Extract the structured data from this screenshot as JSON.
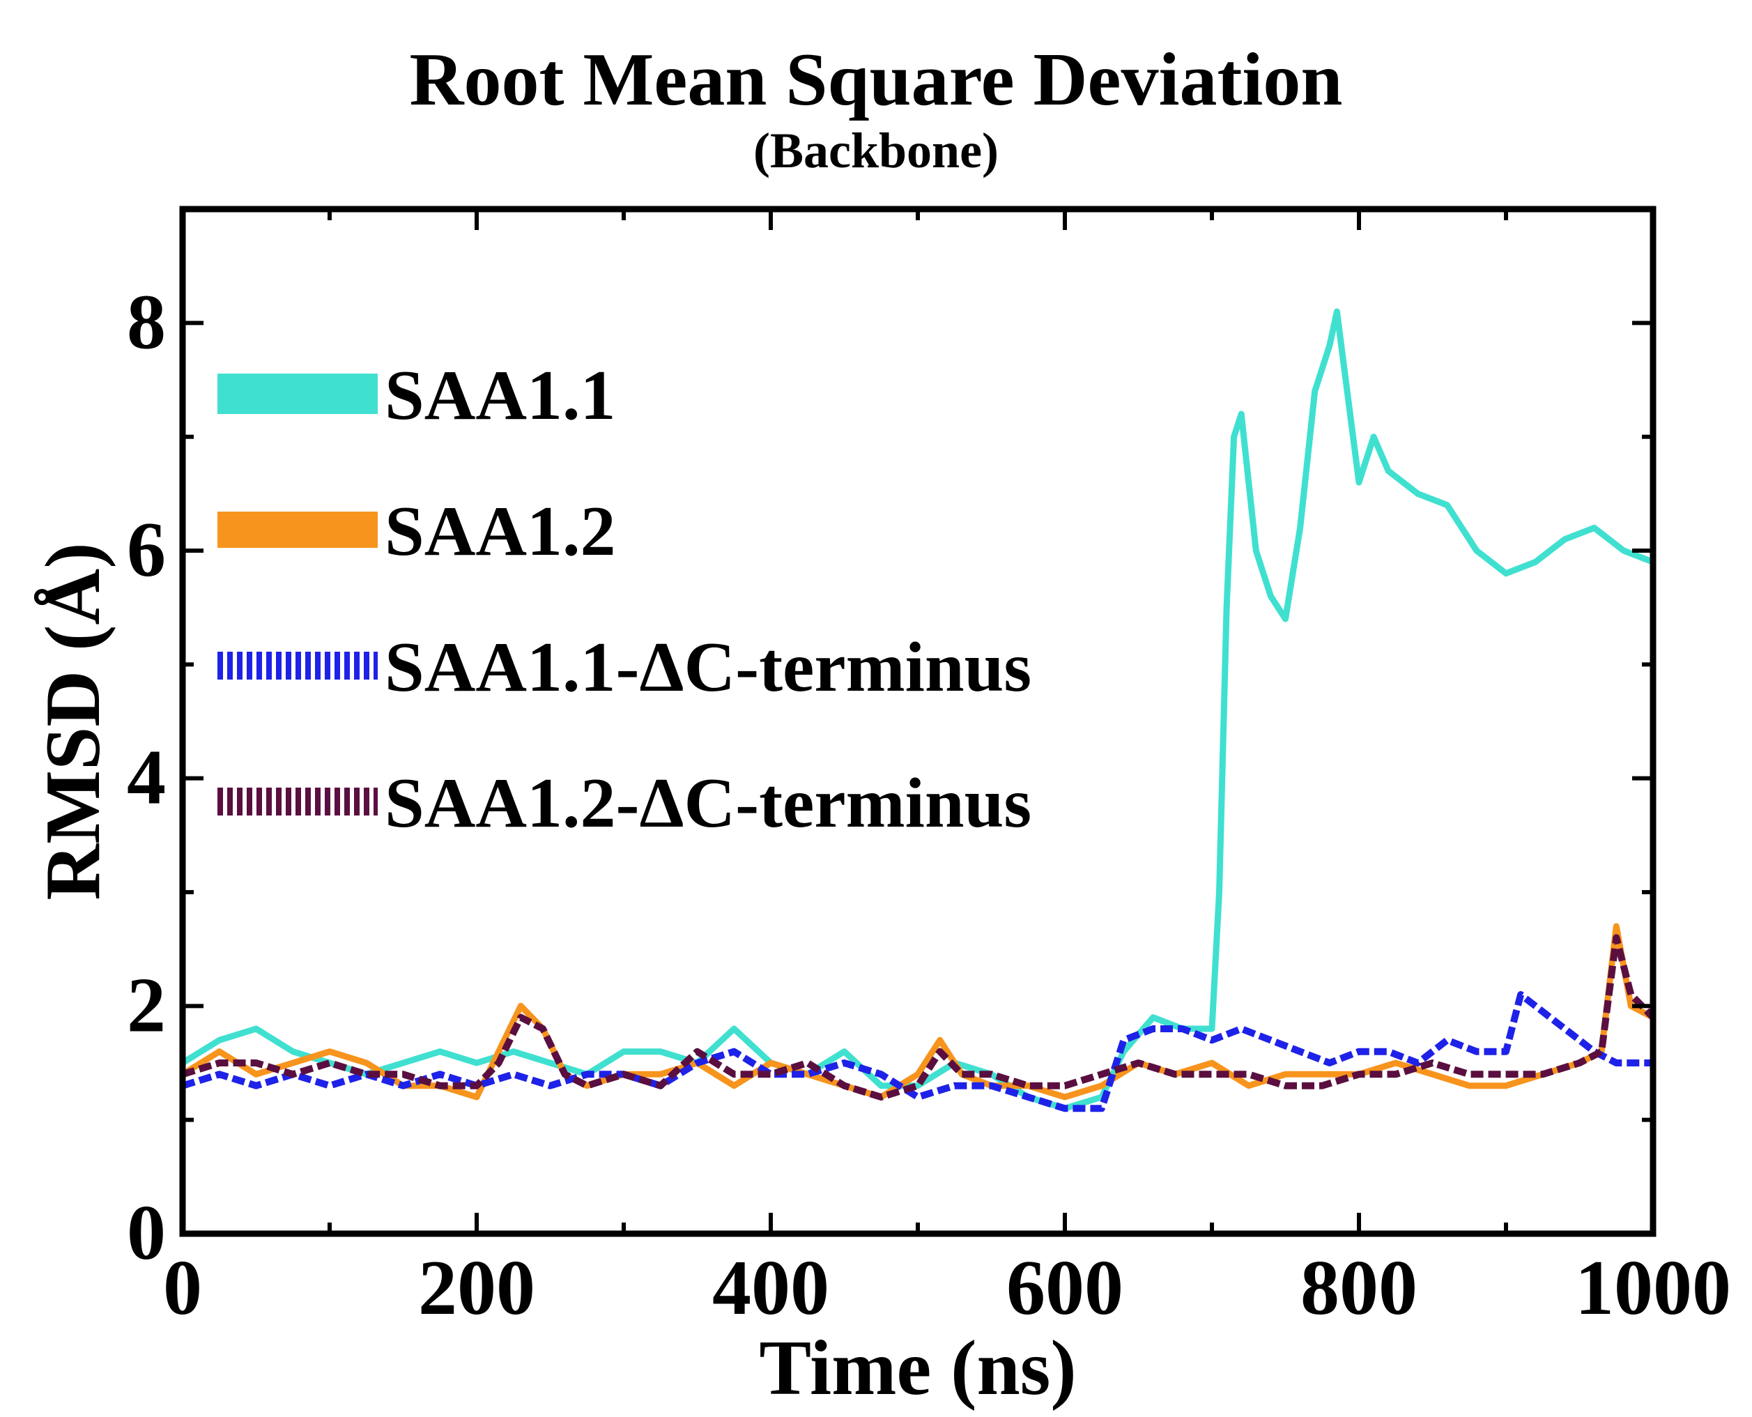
{
  "chart_data": {
    "type": "line",
    "title": "Root Mean Square Deviation",
    "subtitle": "(Backbone)",
    "xlabel": "Time (ns)",
    "ylabel": "RMSD (Å)",
    "xlim": [
      0,
      1000
    ],
    "ylim": [
      0,
      9
    ],
    "xticks": [
      0,
      200,
      400,
      600,
      800,
      1000
    ],
    "yticks": [
      0,
      2,
      4,
      6,
      8
    ],
    "legend_position": "top-left",
    "series": [
      {
        "name": "SAA1.1",
        "color": "#40E0D0",
        "style": "solid",
        "x": [
          0,
          25,
          50,
          75,
          100,
          125,
          150,
          175,
          200,
          225,
          250,
          275,
          300,
          325,
          350,
          375,
          400,
          425,
          450,
          475,
          500,
          525,
          550,
          575,
          600,
          625,
          640,
          660,
          680,
          700,
          705,
          710,
          715,
          720,
          730,
          740,
          750,
          760,
          770,
          780,
          785,
          790,
          800,
          810,
          820,
          840,
          860,
          880,
          900,
          920,
          940,
          960,
          980,
          1000
        ],
        "y": [
          1.5,
          1.7,
          1.8,
          1.6,
          1.5,
          1.4,
          1.5,
          1.6,
          1.5,
          1.6,
          1.5,
          1.4,
          1.6,
          1.6,
          1.5,
          1.8,
          1.5,
          1.4,
          1.6,
          1.3,
          1.3,
          1.5,
          1.4,
          1.2,
          1.1,
          1.2,
          1.6,
          1.9,
          1.8,
          1.8,
          3.0,
          5.5,
          7.0,
          7.2,
          6.0,
          5.6,
          5.4,
          6.2,
          7.4,
          7.8,
          8.1,
          7.6,
          6.6,
          7.0,
          6.7,
          6.5,
          6.4,
          6.0,
          5.8,
          5.9,
          6.1,
          6.2,
          6.0,
          5.9
        ]
      },
      {
        "name": "SAA1.2",
        "color": "#F7941D",
        "style": "solid",
        "x": [
          0,
          25,
          50,
          75,
          100,
          125,
          150,
          175,
          200,
          215,
          230,
          245,
          260,
          275,
          300,
          325,
          350,
          375,
          400,
          425,
          450,
          475,
          500,
          515,
          530,
          550,
          575,
          600,
          625,
          650,
          675,
          700,
          725,
          750,
          775,
          800,
          825,
          850,
          875,
          900,
          925,
          950,
          965,
          975,
          985,
          1000
        ],
        "y": [
          1.4,
          1.6,
          1.4,
          1.5,
          1.6,
          1.5,
          1.3,
          1.3,
          1.2,
          1.6,
          2.0,
          1.8,
          1.4,
          1.3,
          1.4,
          1.4,
          1.5,
          1.3,
          1.5,
          1.4,
          1.3,
          1.2,
          1.4,
          1.7,
          1.4,
          1.3,
          1.3,
          1.2,
          1.3,
          1.5,
          1.4,
          1.5,
          1.3,
          1.4,
          1.4,
          1.4,
          1.5,
          1.4,
          1.3,
          1.3,
          1.4,
          1.5,
          1.6,
          2.7,
          2.0,
          1.9
        ]
      },
      {
        "name": "SAA1.1-ΔC-terminus",
        "color": "#1E22E8",
        "style": "dashed",
        "x": [
          0,
          25,
          50,
          75,
          100,
          125,
          150,
          175,
          200,
          225,
          250,
          275,
          300,
          325,
          350,
          375,
          400,
          425,
          450,
          475,
          500,
          525,
          550,
          575,
          600,
          625,
          640,
          660,
          680,
          700,
          720,
          740,
          760,
          780,
          800,
          820,
          840,
          860,
          880,
          900,
          910,
          920,
          930,
          940,
          950,
          960,
          975,
          1000
        ],
        "y": [
          1.3,
          1.4,
          1.3,
          1.4,
          1.3,
          1.4,
          1.3,
          1.4,
          1.3,
          1.4,
          1.3,
          1.4,
          1.4,
          1.3,
          1.5,
          1.6,
          1.4,
          1.4,
          1.5,
          1.4,
          1.2,
          1.3,
          1.3,
          1.2,
          1.1,
          1.1,
          1.7,
          1.8,
          1.8,
          1.7,
          1.8,
          1.7,
          1.6,
          1.5,
          1.6,
          1.6,
          1.5,
          1.7,
          1.6,
          1.6,
          2.1,
          2.0,
          1.9,
          1.8,
          1.7,
          1.6,
          1.5,
          1.5
        ]
      },
      {
        "name": "SAA1.2-ΔC-terminus",
        "color": "#5A0F40",
        "style": "dashed",
        "x": [
          0,
          25,
          50,
          75,
          100,
          125,
          150,
          175,
          200,
          215,
          230,
          245,
          260,
          275,
          300,
          325,
          350,
          375,
          400,
          425,
          450,
          475,
          500,
          515,
          530,
          550,
          575,
          600,
          625,
          650,
          675,
          700,
          725,
          750,
          775,
          800,
          825,
          850,
          875,
          900,
          925,
          950,
          965,
          975,
          985,
          1000
        ],
        "y": [
          1.4,
          1.5,
          1.5,
          1.4,
          1.5,
          1.4,
          1.4,
          1.3,
          1.3,
          1.5,
          1.9,
          1.8,
          1.4,
          1.3,
          1.4,
          1.3,
          1.6,
          1.4,
          1.4,
          1.5,
          1.3,
          1.2,
          1.3,
          1.6,
          1.4,
          1.4,
          1.3,
          1.3,
          1.4,
          1.5,
          1.4,
          1.4,
          1.4,
          1.3,
          1.3,
          1.4,
          1.4,
          1.5,
          1.4,
          1.4,
          1.4,
          1.5,
          1.6,
          2.6,
          2.1,
          1.9
        ]
      }
    ]
  }
}
